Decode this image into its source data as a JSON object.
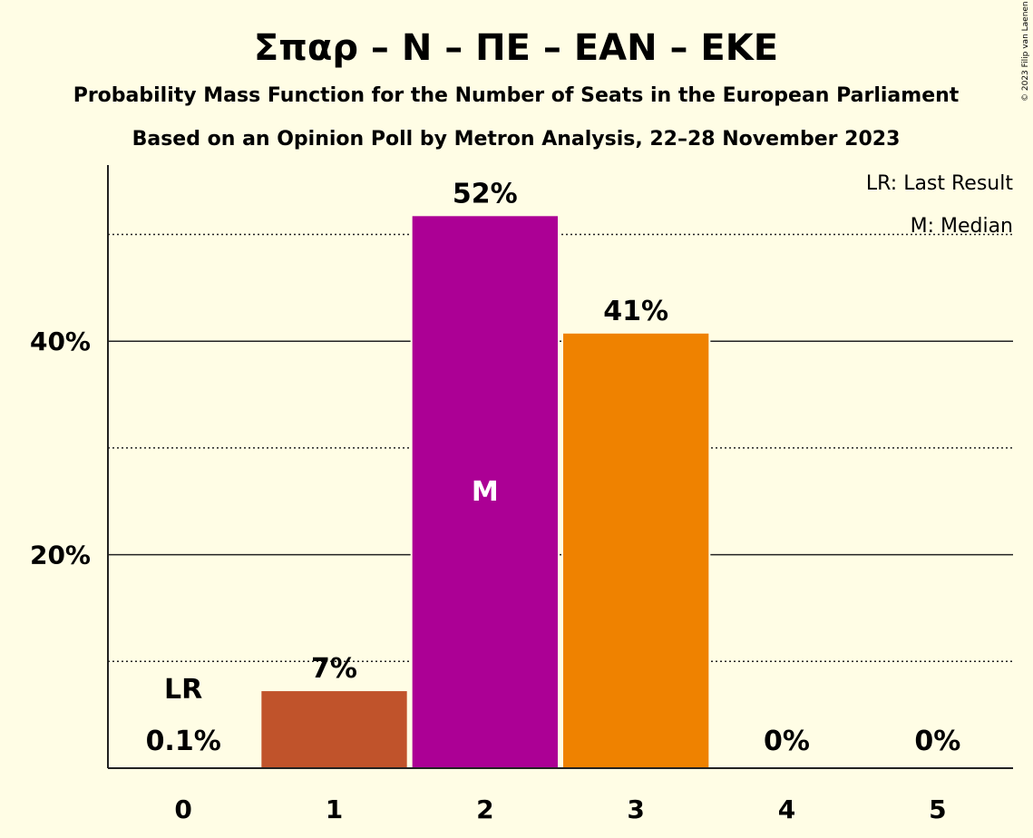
{
  "chart_data": {
    "type": "bar",
    "title": "Σπαρ – N – ΠΕ – EAN – EKE",
    "subtitle": "Probability Mass Function for the Number of Seats in the European Parliament",
    "subtitle2": "Based on an Opinion Poll by Metron Analysis, 22–28 November 2023",
    "categories": [
      "0",
      "1",
      "2",
      "3",
      "4",
      "5"
    ],
    "values": [
      0.1,
      7.3,
      51.8,
      40.8,
      0,
      0
    ],
    "value_labels": [
      "0.1%",
      "7%",
      "52%",
      "41%",
      "0%",
      "0%"
    ],
    "bar_colors": [
      "#c0532b",
      "#c0532b",
      "#ac0095",
      "#ef8200",
      "#ef8200",
      "#ef8200"
    ],
    "ylim": [
      0,
      56.5
    ],
    "y_ticks": [
      {
        "value": 20,
        "label": "20%"
      },
      {
        "value": 40,
        "label": "40%"
      }
    ],
    "minor_gridlines": [
      10,
      30,
      50
    ],
    "last_result_seats": 0,
    "last_result_marker": "LR",
    "median_seats": 2,
    "median_marker": "M",
    "legend": {
      "position": "top-right",
      "items": [
        "LR: Last Result",
        "M: Median"
      ]
    },
    "copyright": "© 2023 Filip van Laenen"
  }
}
